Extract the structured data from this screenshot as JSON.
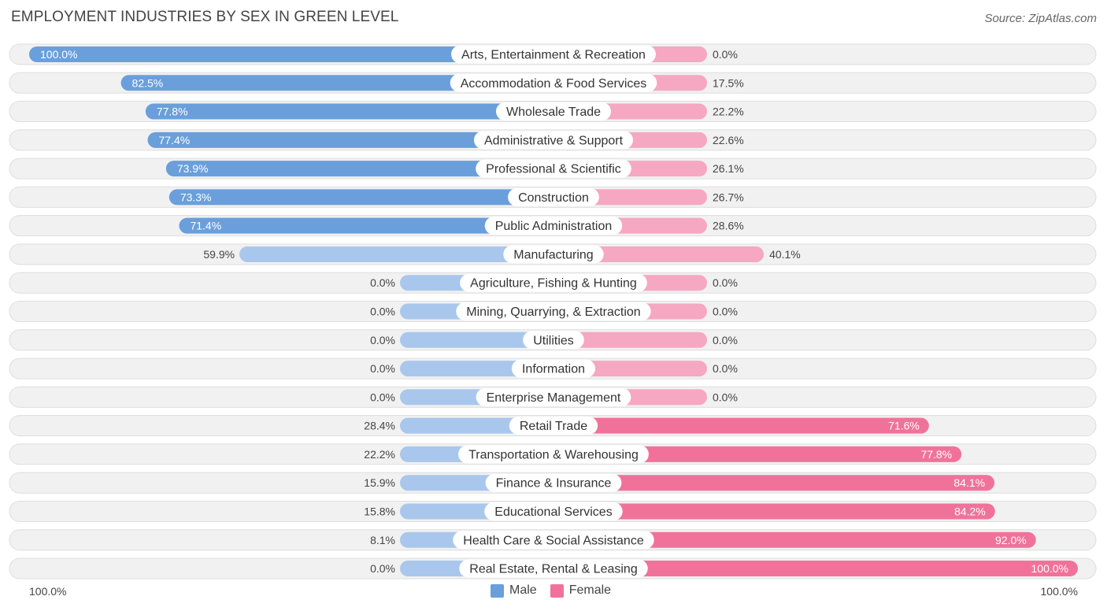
{
  "title": "EMPLOYMENT INDUSTRIES BY SEX IN GREEN LEVEL",
  "source": "Source: ZipAtlas.com",
  "axis": {
    "left_label": "100.0%",
    "right_label": "100.0%"
  },
  "legend": {
    "male": "Male",
    "female": "Female"
  },
  "colors": {
    "male_strong": "#6a9fdc",
    "male_light": "#a9c7ec",
    "female_strong": "#f0729b",
    "female_light": "#f6a7c1",
    "row_bg": "#f1f1f1",
    "row_border": "#dedede"
  },
  "chart_data": {
    "type": "bar",
    "orientation": "horizontal-diverging",
    "title": "EMPLOYMENT INDUSTRIES BY SEX IN GREEN LEVEL",
    "xlim": [
      -100,
      100
    ],
    "categories": [
      "Arts, Entertainment & Recreation",
      "Accommodation & Food Services",
      "Wholesale Trade",
      "Administrative & Support",
      "Professional & Scientific",
      "Construction",
      "Public Administration",
      "Manufacturing",
      "Agriculture, Fishing & Hunting",
      "Mining, Quarrying, & Extraction",
      "Utilities",
      "Information",
      "Enterprise Management",
      "Retail Trade",
      "Transportation & Warehousing",
      "Finance & Insurance",
      "Educational Services",
      "Health Care & Social Assistance",
      "Real Estate, Rental & Leasing"
    ],
    "series": [
      {
        "name": "Male",
        "values": [
          100.0,
          82.5,
          77.8,
          77.4,
          73.9,
          73.3,
          71.4,
          59.9,
          0.0,
          0.0,
          0.0,
          0.0,
          0.0,
          28.4,
          22.2,
          15.9,
          15.8,
          8.1,
          0.0
        ],
        "labels": [
          "100.0%",
          "82.5%",
          "77.8%",
          "77.4%",
          "73.9%",
          "73.3%",
          "71.4%",
          "59.9%",
          "0.0%",
          "0.0%",
          "0.0%",
          "0.0%",
          "0.0%",
          "28.4%",
          "22.2%",
          "15.9%",
          "15.8%",
          "8.1%",
          "0.0%"
        ]
      },
      {
        "name": "Female",
        "values": [
          0.0,
          17.5,
          22.2,
          22.6,
          26.1,
          26.7,
          28.6,
          40.1,
          0.0,
          0.0,
          0.0,
          0.0,
          0.0,
          71.6,
          77.8,
          84.1,
          84.2,
          92.0,
          100.0
        ],
        "labels": [
          "0.0%",
          "17.5%",
          "22.2%",
          "22.6%",
          "26.1%",
          "26.7%",
          "28.6%",
          "40.1%",
          "0.0%",
          "0.0%",
          "0.0%",
          "0.0%",
          "0.0%",
          "71.6%",
          "77.8%",
          "84.1%",
          "84.2%",
          "92.0%",
          "100.0%"
        ]
      }
    ]
  }
}
